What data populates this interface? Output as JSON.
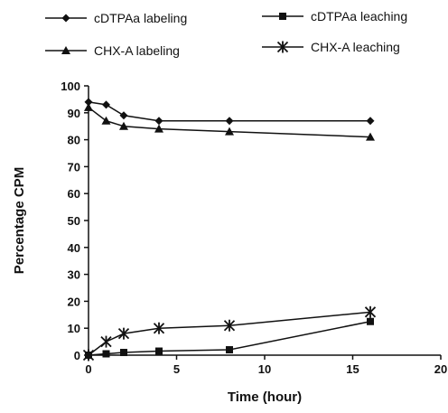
{
  "chart_data": {
    "type": "line",
    "xlabel": "Time (hour)",
    "ylabel": "Percentage CPM",
    "xlim": [
      0,
      20
    ],
    "ylim": [
      0,
      100
    ],
    "xticks": [
      0,
      5,
      10,
      15,
      20
    ],
    "yticks": [
      0,
      10,
      20,
      30,
      40,
      50,
      60,
      70,
      80,
      90,
      100
    ],
    "grid": false,
    "legend_position": "top",
    "series": [
      {
        "name": "cDTPAa labeling",
        "marker": "diamond",
        "x": [
          0,
          1,
          2,
          4,
          8,
          16
        ],
        "y": [
          94,
          93,
          89,
          87,
          87,
          87
        ]
      },
      {
        "name": "cDTPAa leaching",
        "marker": "square",
        "x": [
          0,
          1,
          2,
          4,
          8,
          16
        ],
        "y": [
          0,
          0.5,
          1,
          1.5,
          2,
          12.5
        ]
      },
      {
        "name": "CHX-A labeling",
        "marker": "triangle",
        "x": [
          0,
          1,
          2,
          4,
          8,
          16
        ],
        "y": [
          92,
          87,
          85,
          84,
          83,
          81
        ]
      },
      {
        "name": "CHX-A leaching",
        "marker": "star",
        "x": [
          0,
          1,
          2,
          4,
          8,
          16
        ],
        "y": [
          0,
          5,
          8,
          10,
          11,
          16
        ]
      }
    ]
  }
}
